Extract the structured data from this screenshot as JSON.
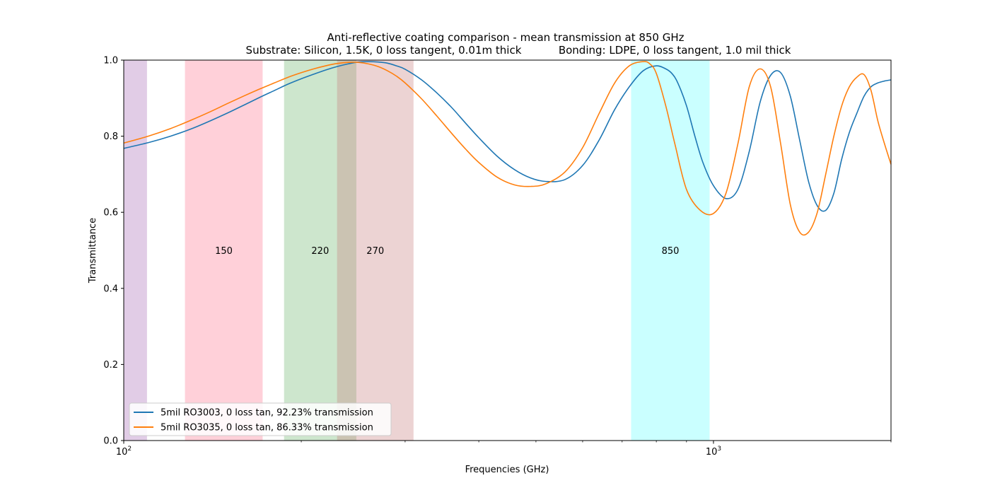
{
  "chart_data": {
    "type": "line",
    "title": "Anti-reflective coating comparison - mean transmission at 850 GHz",
    "subtitle": "Substrate: Silicon, 1.5K, 0 loss tangent, 0.01m thick           Bonding: LDPE, 0 loss tangent, 1.0 mil thick",
    "xlabel": "Frequencies (GHz)",
    "ylabel": "Transmittance",
    "xscale": "log",
    "xlim": [
      100,
      2000
    ],
    "ylim": [
      0.0,
      1.0
    ],
    "grid": false,
    "legend_position": "lower-left",
    "x_major_tick_labels": [
      {
        "value": 100,
        "label": "10^2"
      },
      {
        "value": 1000,
        "label": "10^3"
      }
    ],
    "y_tick_labels": [
      "0.0",
      "0.2",
      "0.4",
      "0.6",
      "0.8",
      "1.0"
    ],
    "bands": [
      {
        "label": "",
        "x0": 100,
        "x1": 109.5,
        "color": "#c8a2d1",
        "opacity": 0.55
      },
      {
        "label": "150",
        "x0": 127,
        "x1": 172,
        "color": "#ffb0c0",
        "opacity": 0.6
      },
      {
        "label": "220",
        "x0": 187,
        "x1": 248,
        "color": "#90c890",
        "opacity": 0.45
      },
      {
        "label": "270",
        "x0": 230,
        "x1": 310,
        "color": "#c88080",
        "opacity": 0.35
      },
      {
        "label": "850",
        "x0": 725,
        "x1": 985,
        "color": "#66ffff",
        "opacity": 0.35
      }
    ],
    "band_label_y": 0.5,
    "series": [
      {
        "name": "5mil RO3003, 0 loss tan, 92.23% transmission",
        "color": "#1f77b4",
        "x": [
          100,
          110,
          120,
          130,
          140,
          150,
          160,
          170,
          180,
          190,
          200,
          210,
          220,
          230,
          240,
          250,
          260,
          270,
          280,
          290,
          300,
          320,
          340,
          360,
          380,
          400,
          430,
          460,
          490,
          520,
          560,
          600,
          640,
          680,
          720,
          760,
          800,
          830,
          850,
          870,
          900,
          930,
          960,
          1000,
          1050,
          1100,
          1150,
          1200,
          1250,
          1300,
          1350,
          1400,
          1450,
          1500,
          1550,
          1600,
          1650,
          1700,
          1750,
          1800,
          1850,
          1900,
          1950,
          2000
        ],
        "y": [
          0.768,
          0.783,
          0.8,
          0.819,
          0.84,
          0.861,
          0.882,
          0.902,
          0.92,
          0.937,
          0.951,
          0.963,
          0.974,
          0.983,
          0.99,
          0.995,
          0.996,
          0.995,
          0.992,
          0.985,
          0.976,
          0.948,
          0.913,
          0.875,
          0.834,
          0.796,
          0.747,
          0.712,
          0.69,
          0.681,
          0.686,
          0.723,
          0.79,
          0.87,
          0.93,
          0.972,
          0.985,
          0.977,
          0.965,
          0.94,
          0.88,
          0.8,
          0.73,
          0.67,
          0.636,
          0.66,
          0.76,
          0.89,
          0.96,
          0.967,
          0.905,
          0.79,
          0.68,
          0.617,
          0.605,
          0.65,
          0.74,
          0.81,
          0.86,
          0.905,
          0.93,
          0.94,
          0.945,
          0.948
        ]
      },
      {
        "name": "5mil RO3035, 0 loss tan, 86.33% transmission",
        "color": "#ff7f0e",
        "x": [
          100,
          110,
          120,
          130,
          140,
          150,
          160,
          170,
          180,
          190,
          200,
          210,
          220,
          230,
          240,
          250,
          260,
          270,
          280,
          290,
          300,
          320,
          340,
          360,
          380,
          400,
          430,
          460,
          490,
          520,
          560,
          600,
          640,
          680,
          720,
          760,
          780,
          800,
          830,
          860,
          900,
          950,
          1000,
          1050,
          1100,
          1150,
          1200,
          1250,
          1300,
          1350,
          1400,
          1450,
          1500,
          1550,
          1600,
          1650,
          1700,
          1750,
          1800,
          1850,
          1900,
          1950,
          2000
        ],
        "y": [
          0.782,
          0.8,
          0.82,
          0.842,
          0.864,
          0.886,
          0.906,
          0.924,
          0.94,
          0.955,
          0.967,
          0.977,
          0.985,
          0.991,
          0.994,
          0.994,
          0.99,
          0.983,
          0.972,
          0.958,
          0.94,
          0.898,
          0.852,
          0.807,
          0.766,
          0.731,
          0.692,
          0.672,
          0.668,
          0.675,
          0.706,
          0.77,
          0.86,
          0.94,
          0.985,
          0.996,
          0.99,
          0.965,
          0.88,
          0.78,
          0.66,
          0.605,
          0.597,
          0.65,
          0.78,
          0.93,
          0.977,
          0.93,
          0.78,
          0.62,
          0.548,
          0.548,
          0.6,
          0.7,
          0.8,
          0.88,
          0.93,
          0.955,
          0.962,
          0.92,
          0.84,
          0.78,
          0.726
        ]
      }
    ]
  }
}
